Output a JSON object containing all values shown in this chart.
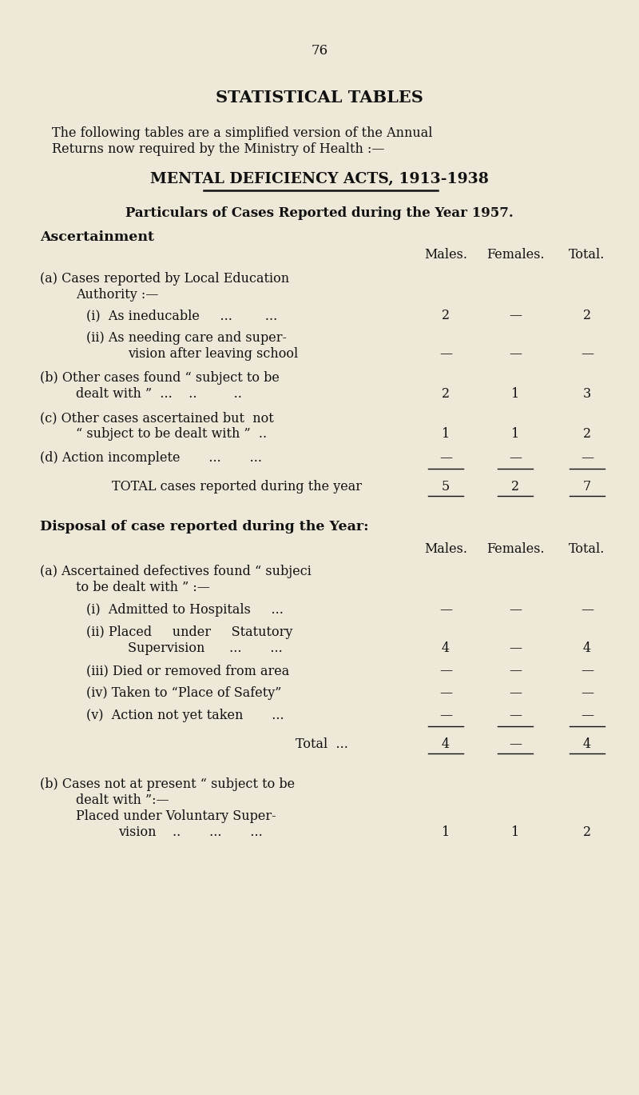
{
  "bg_color": "#ede8d8",
  "text_color": "#1a1a1a",
  "page_number": "76",
  "title1": "STATISTICAL TABLES",
  "title2": "MENTAL DEFICIENCY ACTS, 1913-1938",
  "subtitle": "Particulars of Cases Reported during the Year 1957.",
  "section1_header": "Ascertainment",
  "section2_header": "Disposal of case reported during the Year:",
  "col_males": "Males.",
  "col_females": "Females.",
  "col_total": "Total."
}
